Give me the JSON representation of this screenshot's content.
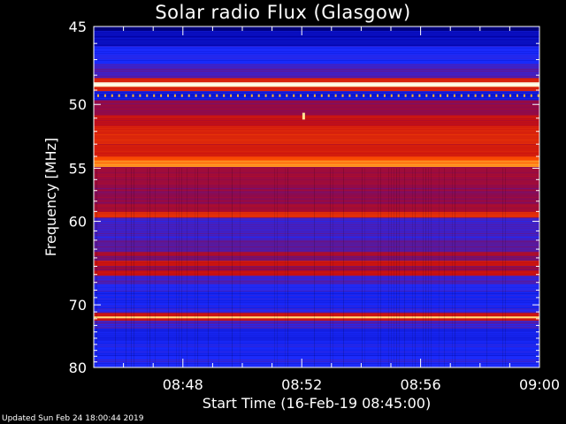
{
  "chart_data": {
    "type": "heatmap",
    "title": "Solar radio Flux (Glasgow)",
    "xlabel": "Start Time (16-Feb-19 08:45:00)",
    "ylabel": "Frequency [MHz]",
    "x_ticks": [
      "08:48",
      "08:52",
      "08:56",
      "09:00"
    ],
    "x_tick_minutes": [
      3,
      7,
      11,
      15
    ],
    "xlim_minutes": [
      0,
      15
    ],
    "y_ticks": [
      45,
      50,
      55,
      60,
      70,
      80
    ],
    "ylim": [
      45,
      80
    ],
    "colormap": [
      "#000030",
      "#0000a0",
      "#1a2cff",
      "#8a0a50",
      "#c81010",
      "#ff5000",
      "#ffd040",
      "#ffffff"
    ],
    "intensity_bands": [
      {
        "f0": 45.0,
        "f1": 45.3,
        "level": 0.1
      },
      {
        "f0": 45.3,
        "f1": 46.2,
        "level": 0.18
      },
      {
        "f0": 46.2,
        "f1": 47.3,
        "level": 0.28
      },
      {
        "f0": 47.3,
        "f1": 48.2,
        "level": 0.34
      },
      {
        "f0": 48.2,
        "f1": 48.5,
        "level": 0.62
      },
      {
        "f0": 48.5,
        "f1": 48.8,
        "level": 0.97
      },
      {
        "f0": 48.8,
        "f1": 49.1,
        "level": 0.62
      },
      {
        "f0": 49.1,
        "f1": 49.7,
        "level": 0.22
      },
      {
        "f0": 49.7,
        "f1": 50.8,
        "level": 0.45
      },
      {
        "f0": 50.8,
        "f1": 51.6,
        "level": 0.56
      },
      {
        "f0": 51.6,
        "f1": 53.0,
        "level": 0.62
      },
      {
        "f0": 53.0,
        "f1": 54.0,
        "level": 0.6
      },
      {
        "f0": 54.0,
        "f1": 54.4,
        "level": 0.7
      },
      {
        "f0": 54.4,
        "f1": 54.9,
        "level": 0.78
      },
      {
        "f0": 54.9,
        "f1": 56.5,
        "level": 0.47
      },
      {
        "f0": 56.5,
        "f1": 58.3,
        "level": 0.44
      },
      {
        "f0": 58.3,
        "f1": 59.1,
        "level": 0.5
      },
      {
        "f0": 59.1,
        "f1": 59.6,
        "level": 0.62
      },
      {
        "f0": 59.6,
        "f1": 60.4,
        "level": 0.34
      },
      {
        "f0": 60.4,
        "f1": 62.0,
        "level": 0.33
      },
      {
        "f0": 62.0,
        "f1": 63.3,
        "level": 0.37
      },
      {
        "f0": 63.3,
        "f1": 63.8,
        "level": 0.52
      },
      {
        "f0": 63.8,
        "f1": 64.4,
        "level": 0.4
      },
      {
        "f0": 64.4,
        "f1": 65.0,
        "level": 0.58
      },
      {
        "f0": 65.0,
        "f1": 65.5,
        "level": 0.44
      },
      {
        "f0": 65.5,
        "f1": 66.2,
        "level": 0.57
      },
      {
        "f0": 66.2,
        "f1": 67.2,
        "level": 0.34
      },
      {
        "f0": 67.2,
        "f1": 68.3,
        "level": 0.3
      },
      {
        "f0": 68.3,
        "f1": 70.6,
        "level": 0.27
      },
      {
        "f0": 70.6,
        "f1": 71.2,
        "level": 0.31
      },
      {
        "f0": 71.2,
        "f1": 71.7,
        "level": 0.58
      },
      {
        "f0": 71.7,
        "f1": 72.0,
        "level": 0.9
      },
      {
        "f0": 72.0,
        "f1": 72.4,
        "level": 0.58
      },
      {
        "f0": 72.4,
        "f1": 73.5,
        "level": 0.34
      },
      {
        "f0": 73.5,
        "f1": 75.5,
        "level": 0.25
      },
      {
        "f0": 75.5,
        "f1": 78.0,
        "level": 0.27
      },
      {
        "f0": 78.0,
        "f1": 80.0,
        "level": 0.29
      }
    ],
    "spike": {
      "minute": 7.05,
      "f0": 50.6,
      "f1": 51.1,
      "level": 0.92
    }
  },
  "footer": "Updated Sun Feb 24 18:00:44 2019"
}
